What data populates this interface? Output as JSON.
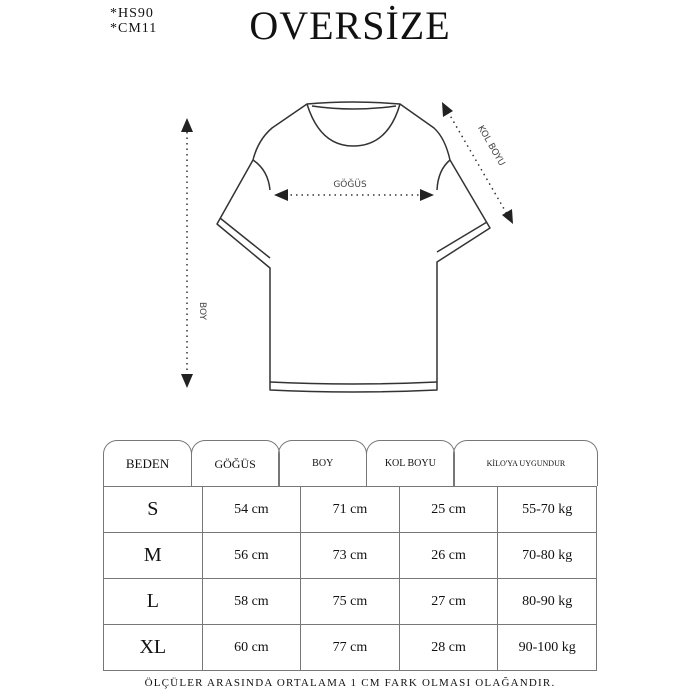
{
  "codes": [
    "*HS90",
    "*CM11"
  ],
  "title": "OVERSİZE",
  "diagram": {
    "chest_label": "GÖĞÜS",
    "length_label": "BOY",
    "sleeve_label": "KOL BOYU"
  },
  "table": {
    "headers": [
      "BEDEN",
      "GÖĞÜS",
      "BOY",
      "KOL BOYU",
      "KİLO'YA UYGUNDUR"
    ],
    "rows": [
      [
        "S",
        "54 cm",
        "71 cm",
        "25  cm",
        "55-70 kg"
      ],
      [
        "M",
        "56 cm",
        "73 cm",
        "26 cm",
        "70-80 kg"
      ],
      [
        "L",
        "58 cm",
        "75 cm",
        "27 cm",
        "80-90 kg"
      ],
      [
        "XL",
        "60 cm",
        "77 cm",
        "28 cm",
        "90-100 kg"
      ]
    ]
  },
  "footer": "ÖLÇÜLER ARASINDA ORTALAMA 1 CM FARK OLMASI OLAĞANDIR."
}
